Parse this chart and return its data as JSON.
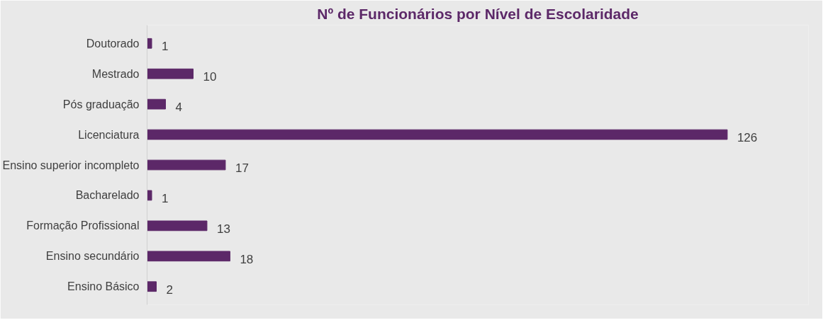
{
  "chart_data": {
    "type": "bar",
    "orientation": "horizontal",
    "title": "Nº de Funcionários por Nível de Escolaridade",
    "categories": [
      "Doutorado",
      "Mestrado",
      "Pós graduação",
      "Licenciatura",
      "Ensino superior incompleto",
      "Bacharelado",
      "Formação Profissional",
      "Ensino secundário",
      "Ensino Básico"
    ],
    "values": [
      1,
      10,
      4,
      126,
      17,
      1,
      13,
      18,
      2
    ],
    "color": "#5c2868",
    "data_labels": true
  }
}
